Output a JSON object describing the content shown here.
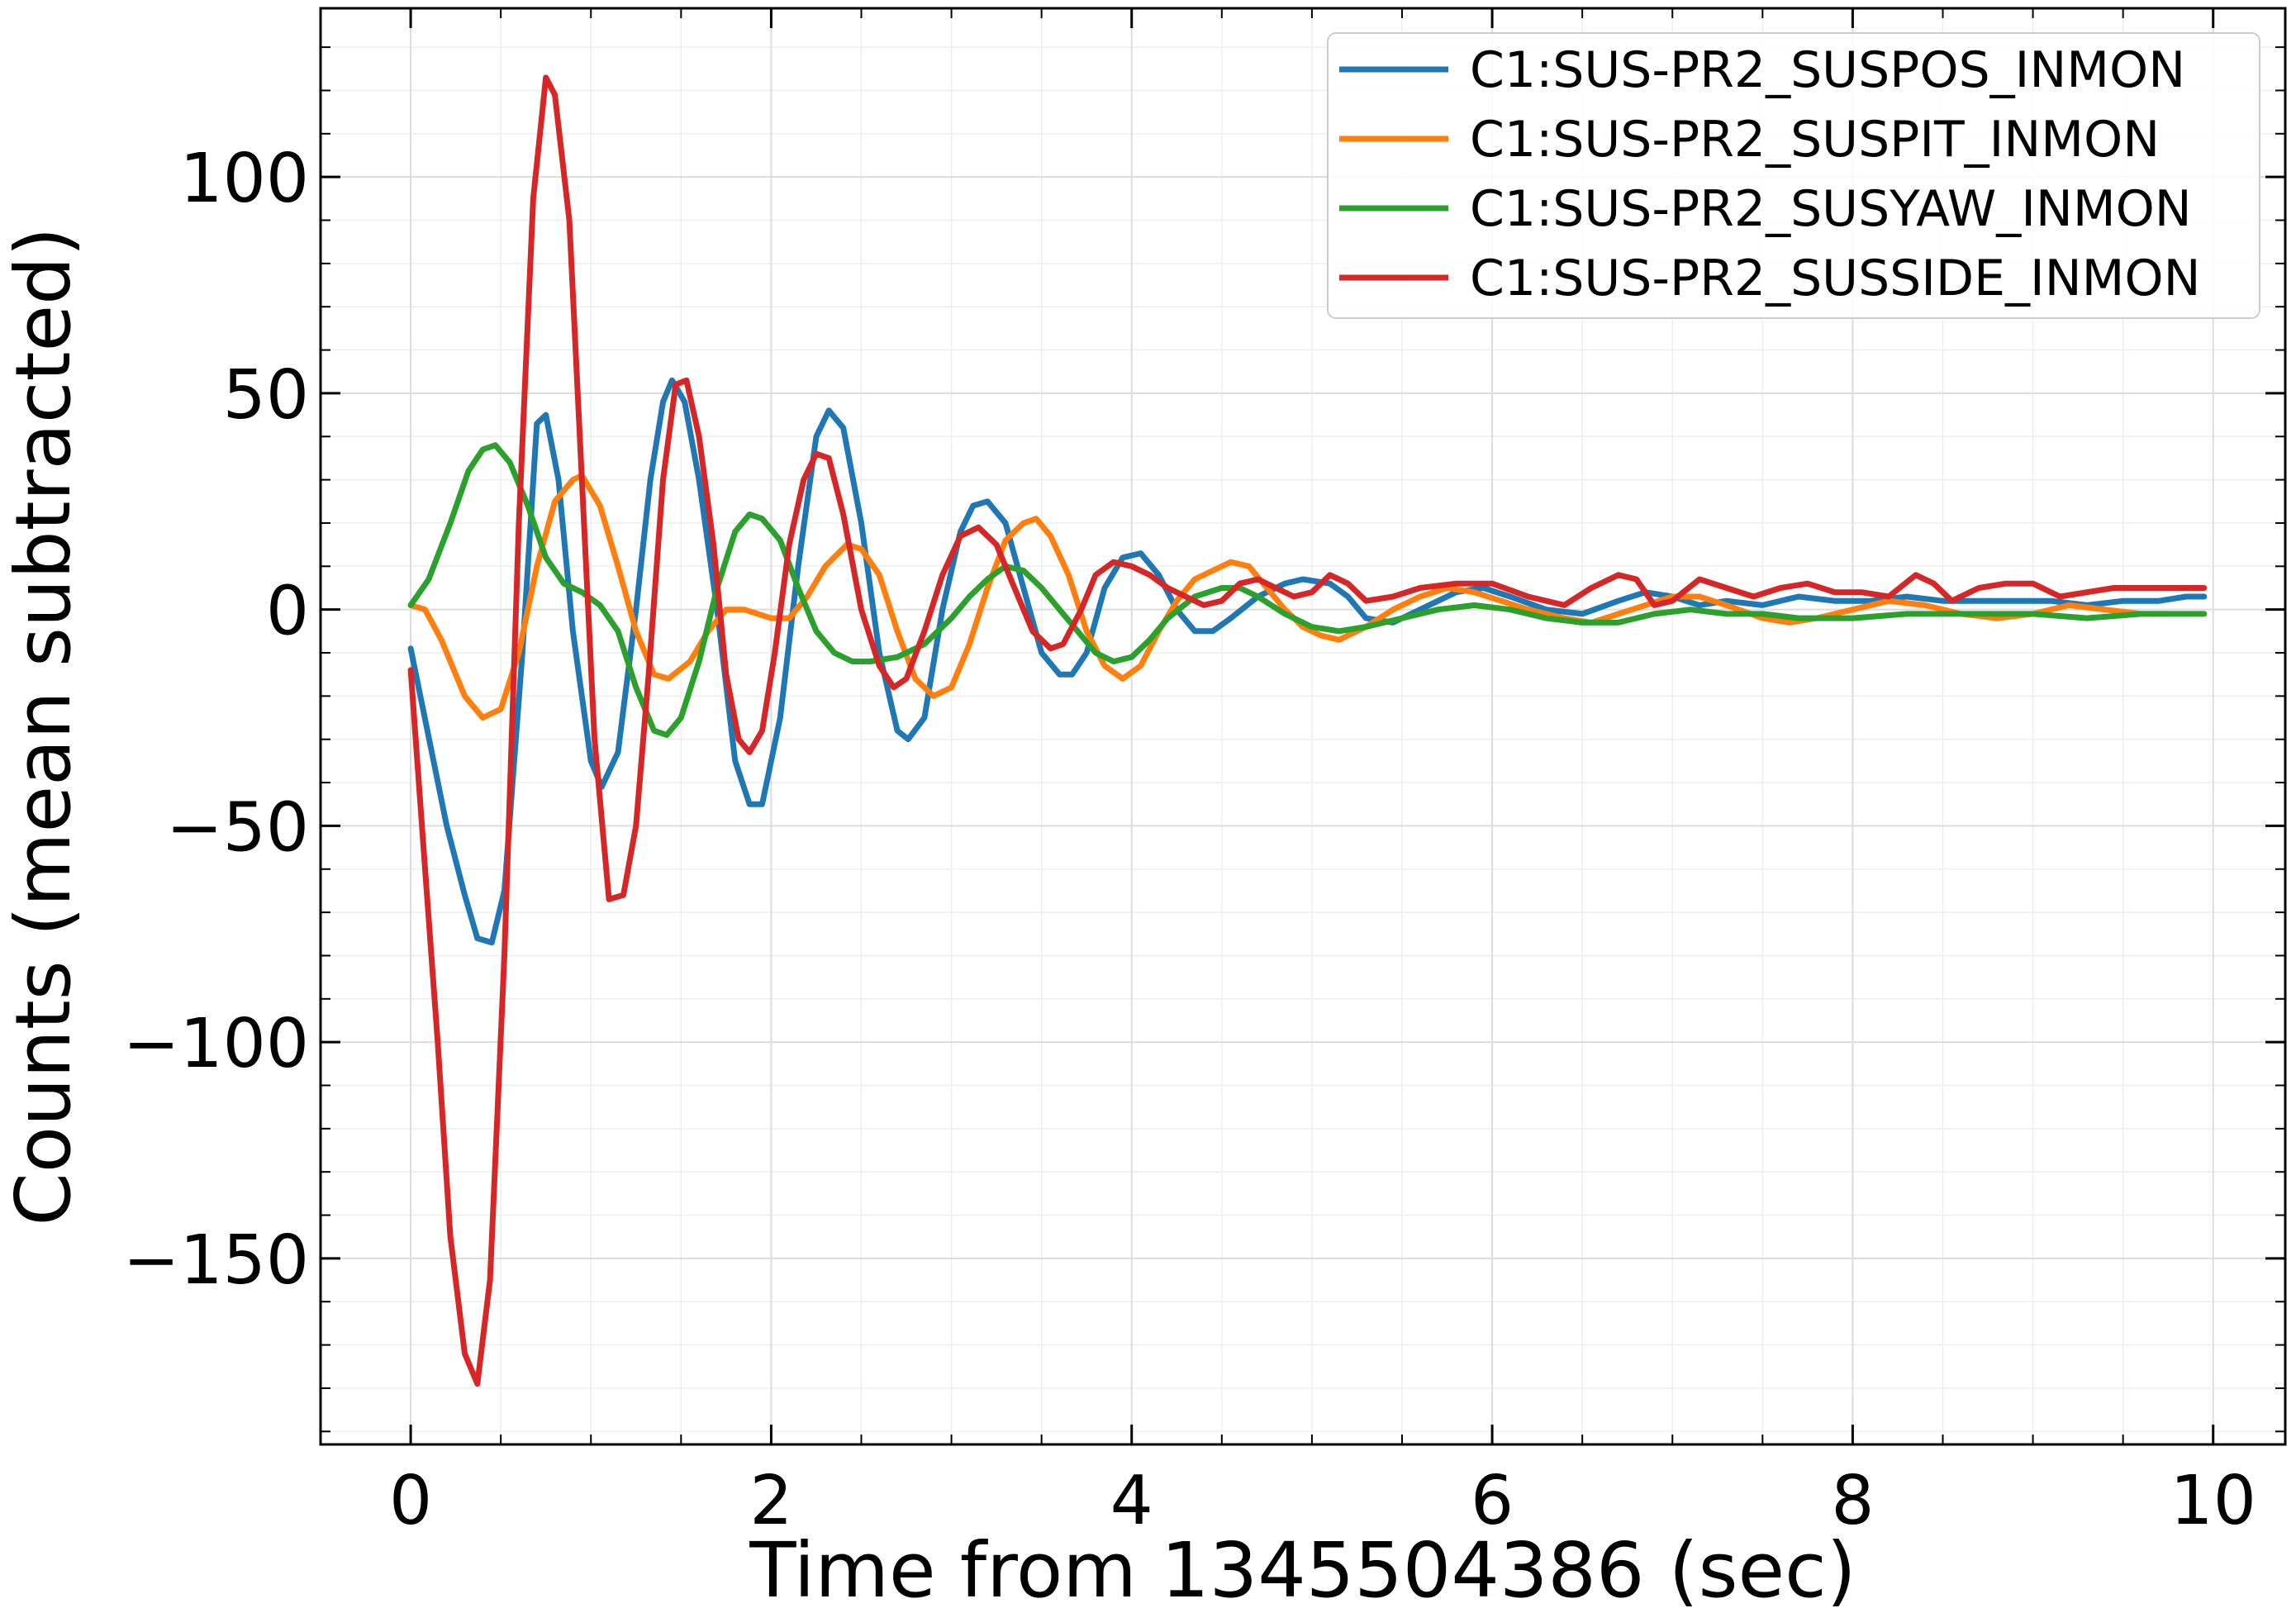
{
  "chart_data": {
    "type": "line",
    "title": "",
    "xlabel": "Time from 1345504386 (sec)",
    "ylabel": "Counts (mean subtracted)",
    "xlim": [
      -0.5,
      10.4
    ],
    "ylim": [
      -193,
      139
    ],
    "xticks": [
      0,
      2,
      4,
      6,
      8,
      10
    ],
    "xtick_labels": [
      "0",
      "2",
      "4",
      "6",
      "8",
      "10"
    ],
    "yticks": [
      -150,
      -100,
      -50,
      0,
      50,
      100
    ],
    "ytick_labels": [
      "−150",
      "−100",
      "−50",
      "0",
      "50",
      "100"
    ],
    "grid": true,
    "legend_position": "top-right",
    "series": [
      {
        "name": "C1:SUS-PR2_SUSPOS_INMON",
        "color": "#1f77b4",
        "points": [
          [
            0,
            -9
          ],
          [
            0.2,
            -50
          ],
          [
            0.3,
            -66
          ],
          [
            0.37,
            -76
          ],
          [
            0.45,
            -77
          ],
          [
            0.52,
            -65
          ],
          [
            0.62,
            -10
          ],
          [
            0.7,
            43
          ],
          [
            0.75,
            45
          ],
          [
            0.82,
            30
          ],
          [
            0.9,
            -5
          ],
          [
            1.0,
            -35
          ],
          [
            1.06,
            -41
          ],
          [
            1.15,
            -33
          ],
          [
            1.25,
            0
          ],
          [
            1.33,
            30
          ],
          [
            1.4,
            48
          ],
          [
            1.45,
            53
          ],
          [
            1.52,
            48
          ],
          [
            1.6,
            30
          ],
          [
            1.7,
            0
          ],
          [
            1.8,
            -35
          ],
          [
            1.88,
            -45
          ],
          [
            1.95,
            -45
          ],
          [
            2.05,
            -25
          ],
          [
            2.15,
            10
          ],
          [
            2.25,
            40
          ],
          [
            2.32,
            46
          ],
          [
            2.4,
            42
          ],
          [
            2.5,
            20
          ],
          [
            2.6,
            -10
          ],
          [
            2.7,
            -28
          ],
          [
            2.76,
            -30
          ],
          [
            2.85,
            -25
          ],
          [
            2.95,
            0
          ],
          [
            3.05,
            18
          ],
          [
            3.12,
            24
          ],
          [
            3.2,
            25
          ],
          [
            3.3,
            20
          ],
          [
            3.4,
            5
          ],
          [
            3.5,
            -10
          ],
          [
            3.6,
            -15
          ],
          [
            3.67,
            -15
          ],
          [
            3.75,
            -10
          ],
          [
            3.85,
            5
          ],
          [
            3.95,
            12
          ],
          [
            4.05,
            13
          ],
          [
            4.15,
            8
          ],
          [
            4.25,
            0
          ],
          [
            4.35,
            -5
          ],
          [
            4.45,
            -5
          ],
          [
            4.55,
            -2
          ],
          [
            4.7,
            3
          ],
          [
            4.85,
            6
          ],
          [
            4.95,
            7
          ],
          [
            5.1,
            6
          ],
          [
            5.2,
            3
          ],
          [
            5.3,
            -2
          ],
          [
            5.45,
            -3
          ],
          [
            5.6,
            0
          ],
          [
            5.8,
            4
          ],
          [
            5.95,
            5
          ],
          [
            6.1,
            3
          ],
          [
            6.3,
            0
          ],
          [
            6.5,
            -1
          ],
          [
            6.7,
            2
          ],
          [
            6.85,
            4
          ],
          [
            7.0,
            3
          ],
          [
            7.15,
            1
          ],
          [
            7.3,
            2
          ],
          [
            7.5,
            1
          ],
          [
            7.7,
            3
          ],
          [
            7.9,
            2
          ],
          [
            8.1,
            2
          ],
          [
            8.3,
            3
          ],
          [
            8.5,
            2
          ],
          [
            8.7,
            2
          ],
          [
            8.9,
            2
          ],
          [
            9.1,
            2
          ],
          [
            9.3,
            1
          ],
          [
            9.5,
            2
          ],
          [
            9.7,
            2
          ],
          [
            9.85,
            3
          ],
          [
            9.95,
            3
          ]
        ]
      },
      {
        "name": "C1:SUS-PR2_SUSPIT_INMON",
        "color": "#ff7f0e",
        "points": [
          [
            0,
            1
          ],
          [
            0.08,
            0
          ],
          [
            0.17,
            -7
          ],
          [
            0.3,
            -20
          ],
          [
            0.4,
            -25
          ],
          [
            0.5,
            -23
          ],
          [
            0.6,
            -10
          ],
          [
            0.7,
            10
          ],
          [
            0.8,
            25
          ],
          [
            0.9,
            30
          ],
          [
            0.95,
            31
          ],
          [
            1.05,
            24
          ],
          [
            1.15,
            10
          ],
          [
            1.25,
            -5
          ],
          [
            1.35,
            -15
          ],
          [
            1.43,
            -16
          ],
          [
            1.55,
            -12
          ],
          [
            1.65,
            -5
          ],
          [
            1.75,
            0
          ],
          [
            1.85,
            0
          ],
          [
            2.0,
            -2
          ],
          [
            2.1,
            -2
          ],
          [
            2.2,
            3
          ],
          [
            2.3,
            10
          ],
          [
            2.42,
            15
          ],
          [
            2.5,
            14
          ],
          [
            2.6,
            8
          ],
          [
            2.7,
            -5
          ],
          [
            2.8,
            -16
          ],
          [
            2.9,
            -20
          ],
          [
            3.0,
            -18
          ],
          [
            3.1,
            -8
          ],
          [
            3.2,
            5
          ],
          [
            3.3,
            16
          ],
          [
            3.4,
            20
          ],
          [
            3.47,
            21
          ],
          [
            3.55,
            17
          ],
          [
            3.65,
            8
          ],
          [
            3.75,
            -5
          ],
          [
            3.85,
            -13
          ],
          [
            3.95,
            -16
          ],
          [
            4.05,
            -13
          ],
          [
            4.15,
            -5
          ],
          [
            4.25,
            2
          ],
          [
            4.35,
            7
          ],
          [
            4.45,
            9
          ],
          [
            4.55,
            11
          ],
          [
            4.65,
            10
          ],
          [
            4.75,
            5
          ],
          [
            4.85,
            0
          ],
          [
            4.95,
            -4
          ],
          [
            5.05,
            -6
          ],
          [
            5.15,
            -7
          ],
          [
            5.3,
            -4
          ],
          [
            5.45,
            0
          ],
          [
            5.6,
            3
          ],
          [
            5.75,
            5
          ],
          [
            5.9,
            4
          ],
          [
            6.05,
            2
          ],
          [
            6.2,
            0
          ],
          [
            6.4,
            -2
          ],
          [
            6.55,
            -3
          ],
          [
            6.7,
            -1
          ],
          [
            6.85,
            1
          ],
          [
            7.0,
            3
          ],
          [
            7.15,
            3
          ],
          [
            7.3,
            1
          ],
          [
            7.5,
            -2
          ],
          [
            7.65,
            -3
          ],
          [
            7.8,
            -2
          ],
          [
            8.0,
            0
          ],
          [
            8.2,
            2
          ],
          [
            8.4,
            1
          ],
          [
            8.6,
            -1
          ],
          [
            8.8,
            -2
          ],
          [
            9.0,
            -1
          ],
          [
            9.2,
            1
          ],
          [
            9.4,
            0
          ],
          [
            9.6,
            -1
          ],
          [
            9.75,
            -1
          ]
        ]
      },
      {
        "name": "C1:SUS-PR2_SUSYAW_INMON",
        "color": "#2ca02c",
        "points": [
          [
            0,
            1
          ],
          [
            0.1,
            7
          ],
          [
            0.22,
            20
          ],
          [
            0.32,
            32
          ],
          [
            0.4,
            37
          ],
          [
            0.47,
            38
          ],
          [
            0.55,
            34
          ],
          [
            0.65,
            24
          ],
          [
            0.75,
            12
          ],
          [
            0.85,
            6
          ],
          [
            0.95,
            4
          ],
          [
            1.05,
            1
          ],
          [
            1.15,
            -5
          ],
          [
            1.25,
            -18
          ],
          [
            1.35,
            -28
          ],
          [
            1.42,
            -29
          ],
          [
            1.5,
            -25
          ],
          [
            1.6,
            -12
          ],
          [
            1.7,
            5
          ],
          [
            1.8,
            18
          ],
          [
            1.88,
            22
          ],
          [
            1.95,
            21
          ],
          [
            2.05,
            16
          ],
          [
            2.15,
            5
          ],
          [
            2.25,
            -5
          ],
          [
            2.35,
            -10
          ],
          [
            2.45,
            -12
          ],
          [
            2.55,
            -12
          ],
          [
            2.7,
            -11
          ],
          [
            2.85,
            -8
          ],
          [
            3.0,
            -2
          ],
          [
            3.1,
            3
          ],
          [
            3.2,
            7
          ],
          [
            3.3,
            10
          ],
          [
            3.4,
            9
          ],
          [
            3.5,
            5
          ],
          [
            3.6,
            0
          ],
          [
            3.7,
            -5
          ],
          [
            3.8,
            -10
          ],
          [
            3.9,
            -12
          ],
          [
            4.0,
            -11
          ],
          [
            4.1,
            -7
          ],
          [
            4.2,
            -2
          ],
          [
            4.35,
            3
          ],
          [
            4.5,
            5
          ],
          [
            4.6,
            5
          ],
          [
            4.7,
            3
          ],
          [
            4.85,
            -1
          ],
          [
            5.0,
            -4
          ],
          [
            5.15,
            -5
          ],
          [
            5.3,
            -4
          ],
          [
            5.5,
            -2
          ],
          [
            5.7,
            0
          ],
          [
            5.9,
            1
          ],
          [
            6.1,
            0
          ],
          [
            6.3,
            -2
          ],
          [
            6.5,
            -3
          ],
          [
            6.7,
            -3
          ],
          [
            6.9,
            -1
          ],
          [
            7.1,
            0
          ],
          [
            7.3,
            -1
          ],
          [
            7.5,
            -1
          ],
          [
            7.7,
            -2
          ],
          [
            8.0,
            -2
          ],
          [
            8.3,
            -1
          ],
          [
            8.6,
            -1
          ],
          [
            9.0,
            -1
          ],
          [
            9.3,
            -2
          ],
          [
            9.6,
            -1
          ],
          [
            9.95,
            -1
          ]
        ]
      },
      {
        "name": "C1:SUS-PR2_SUSSIDE_INMON",
        "color": "#d62728",
        "points": [
          [
            0,
            -14
          ],
          [
            0.08,
            -60
          ],
          [
            0.15,
            -100
          ],
          [
            0.22,
            -145
          ],
          [
            0.3,
            -172
          ],
          [
            0.37,
            -179
          ],
          [
            0.44,
            -155
          ],
          [
            0.52,
            -80
          ],
          [
            0.6,
            20
          ],
          [
            0.68,
            95
          ],
          [
            0.75,
            123
          ],
          [
            0.8,
            119
          ],
          [
            0.88,
            90
          ],
          [
            0.95,
            30
          ],
          [
            1.02,
            -30
          ],
          [
            1.1,
            -67
          ],
          [
            1.18,
            -66
          ],
          [
            1.25,
            -50
          ],
          [
            1.32,
            -15
          ],
          [
            1.4,
            30
          ],
          [
            1.47,
            52
          ],
          [
            1.53,
            53
          ],
          [
            1.6,
            40
          ],
          [
            1.68,
            15
          ],
          [
            1.75,
            -15
          ],
          [
            1.82,
            -30
          ],
          [
            1.88,
            -33
          ],
          [
            1.95,
            -28
          ],
          [
            2.02,
            -10
          ],
          [
            2.1,
            15
          ],
          [
            2.18,
            30
          ],
          [
            2.25,
            36
          ],
          [
            2.32,
            35
          ],
          [
            2.4,
            22
          ],
          [
            2.5,
            0
          ],
          [
            2.6,
            -13
          ],
          [
            2.68,
            -18
          ],
          [
            2.75,
            -16
          ],
          [
            2.85,
            -5
          ],
          [
            2.95,
            8
          ],
          [
            3.05,
            17
          ],
          [
            3.15,
            19
          ],
          [
            3.25,
            15
          ],
          [
            3.35,
            5
          ],
          [
            3.45,
            -5
          ],
          [
            3.55,
            -9
          ],
          [
            3.62,
            -8
          ],
          [
            3.72,
            0
          ],
          [
            3.8,
            8
          ],
          [
            3.9,
            11
          ],
          [
            4.0,
            10
          ],
          [
            4.1,
            8
          ],
          [
            4.2,
            5
          ],
          [
            4.3,
            3
          ],
          [
            4.4,
            1
          ],
          [
            4.5,
            2
          ],
          [
            4.6,
            6
          ],
          [
            4.7,
            7
          ],
          [
            4.8,
            5
          ],
          [
            4.9,
            3
          ],
          [
            5.0,
            4
          ],
          [
            5.1,
            8
          ],
          [
            5.2,
            6
          ],
          [
            5.3,
            2
          ],
          [
            5.45,
            3
          ],
          [
            5.6,
            5
          ],
          [
            5.8,
            6
          ],
          [
            6.0,
            6
          ],
          [
            6.2,
            3
          ],
          [
            6.4,
            1
          ],
          [
            6.55,
            5
          ],
          [
            6.7,
            8
          ],
          [
            6.8,
            7
          ],
          [
            6.9,
            1
          ],
          [
            7.0,
            2
          ],
          [
            7.15,
            7
          ],
          [
            7.3,
            5
          ],
          [
            7.45,
            3
          ],
          [
            7.6,
            5
          ],
          [
            7.75,
            6
          ],
          [
            7.9,
            4
          ],
          [
            8.05,
            4
          ],
          [
            8.2,
            3
          ],
          [
            8.35,
            8
          ],
          [
            8.45,
            6
          ],
          [
            8.55,
            2
          ],
          [
            8.7,
            5
          ],
          [
            8.85,
            6
          ],
          [
            9.0,
            6
          ],
          [
            9.15,
            3
          ],
          [
            9.3,
            4
          ],
          [
            9.45,
            5
          ],
          [
            9.6,
            5
          ],
          [
            9.75,
            5
          ],
          [
            9.95,
            5
          ]
        ]
      }
    ]
  }
}
